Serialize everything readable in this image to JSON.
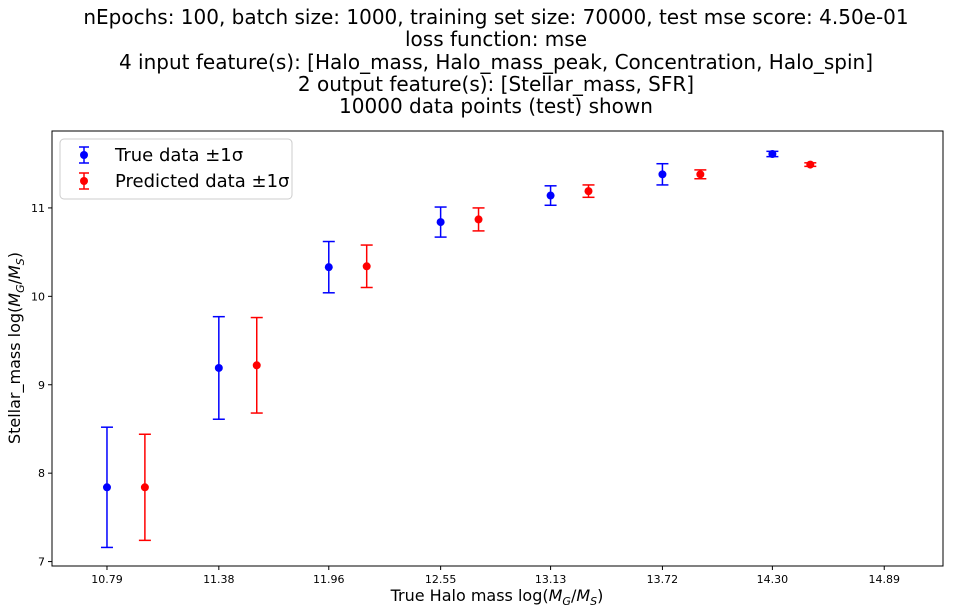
{
  "chart_data": {
    "type": "scatter",
    "title_lines": [
      "nEpochs: 100, batch size: 1000, training set size: 70000, test mse score: 4.50e-01",
      "loss function: mse",
      "4 input feature(s): [Halo_mass, Halo_mass_peak, Concentration, Halo_spin]",
      "2 output feature(s): [Stellar_mass, SFR]",
      "10000 data points (test) shown"
    ],
    "xlabel": "True Halo mass log(M_G/M_S)",
    "ylabel": "Stellar_mass log(M_G/M_S)",
    "xlim": [
      10.5,
      15.2
    ],
    "ylim": [
      6.95,
      11.87
    ],
    "x_ticks": [
      "10.79",
      "11.38",
      "11.96",
      "12.55",
      "13.13",
      "13.72",
      "14.30",
      "14.89"
    ],
    "y_ticks": [
      "7",
      "8",
      "9",
      "10",
      "11"
    ],
    "legend_position": "upper-left",
    "series": [
      {
        "name": "True data ±1σ",
        "color": "#0000ff",
        "points": [
          {
            "x": 10.79,
            "y": 7.84,
            "yerr": 0.68
          },
          {
            "x": 11.38,
            "y": 9.19,
            "yerr": 0.58
          },
          {
            "x": 11.96,
            "y": 10.33,
            "yerr": 0.29
          },
          {
            "x": 12.55,
            "y": 10.84,
            "yerr": 0.17
          },
          {
            "x": 13.13,
            "y": 11.14,
            "yerr": 0.11
          },
          {
            "x": 13.72,
            "y": 11.38,
            "yerr": 0.12
          },
          {
            "x": 14.3,
            "y": 11.61,
            "yerr": 0.03
          }
        ]
      },
      {
        "name": "Predicted data ±1σ",
        "color": "#ff0000",
        "points": [
          {
            "x": 10.99,
            "y": 7.84,
            "yerr": 0.6
          },
          {
            "x": 11.58,
            "y": 9.22,
            "yerr": 0.54
          },
          {
            "x": 12.16,
            "y": 10.34,
            "yerr": 0.24
          },
          {
            "x": 12.75,
            "y": 10.87,
            "yerr": 0.13
          },
          {
            "x": 13.33,
            "y": 11.19,
            "yerr": 0.07
          },
          {
            "x": 13.92,
            "y": 11.38,
            "yerr": 0.05
          },
          {
            "x": 14.5,
            "y": 11.49,
            "yerr": 0.02
          }
        ]
      }
    ]
  }
}
